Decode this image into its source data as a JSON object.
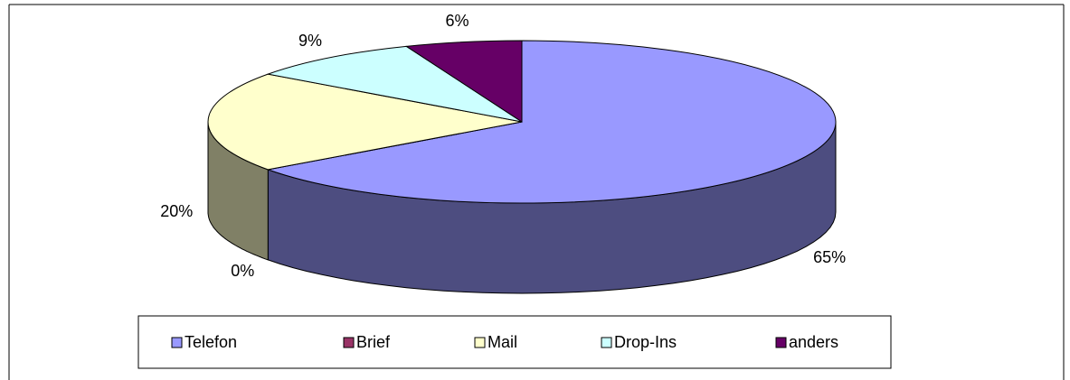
{
  "chart_data": {
    "type": "pie3d",
    "categories": [
      "Telefon",
      "Brief",
      "Mail",
      "Drop-Ins",
      "anders"
    ],
    "values": [
      65,
      0,
      20,
      9,
      6
    ],
    "value_labels": [
      "65%",
      "0%",
      "20%",
      "9%",
      "6%"
    ],
    "colors": [
      "#9999ff",
      "#993366",
      "#ffffcc",
      "#ccffff",
      "#660066"
    ],
    "legend": "bottom"
  }
}
